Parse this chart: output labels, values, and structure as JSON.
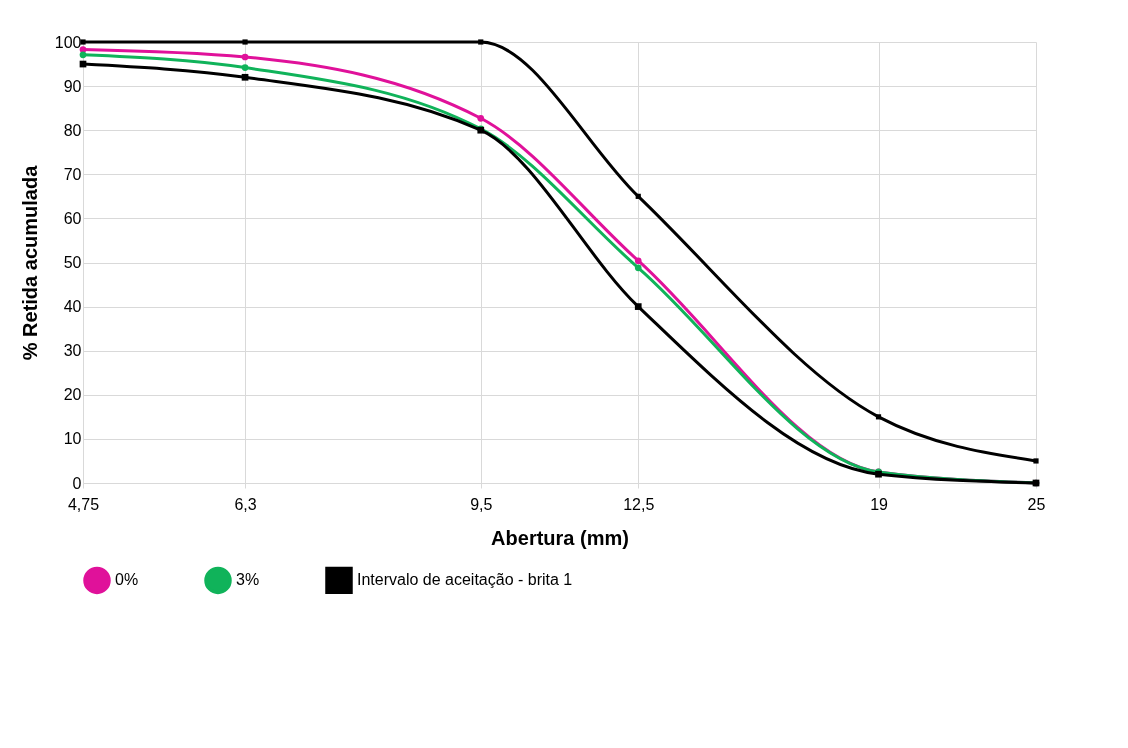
{
  "chart_data": {
    "type": "line",
    "xlabel": "Abertura (mm)",
    "ylabel": "% Retida acumulada",
    "x": [
      4.75,
      6.3,
      9.5,
      12.5,
      19,
      25
    ],
    "log": "x",
    "xlim": [
      4.75,
      25
    ],
    "xticks": [
      {
        "value": 4.75,
        "label": "4,75"
      },
      {
        "value": 6.3,
        "label": "6,3"
      },
      {
        "value": 9.5,
        "label": "9,5"
      },
      {
        "value": 12.5,
        "label": "12,5"
      },
      19,
      25
    ],
    "ylim": [
      0,
      100
    ],
    "yticks": [
      0,
      10,
      20,
      30,
      40,
      50,
      60,
      70,
      80,
      90,
      100
    ],
    "grid": true,
    "legend": "bottom",
    "series": [
      {
        "name": "0%",
        "color": "#e0119a",
        "marker": "circle",
        "values": [
          98.3,
          96.6,
          82.7,
          50.4,
          2.5,
          0
        ]
      },
      {
        "name": "3%",
        "color": "#10b35a",
        "marker": "circle",
        "values": [
          97.1,
          94.2,
          80.3,
          48.8,
          2.5,
          0
        ]
      },
      {
        "name": "Intervalo de aceitação - brita 1",
        "color": "#000000",
        "marker": "square",
        "values": [
          95,
          92,
          80,
          40,
          2,
          0
        ]
      },
      {
        "color": "#000000",
        "marker": "square",
        "values": [
          100,
          100,
          100,
          65,
          15,
          5
        ]
      }
    ]
  }
}
